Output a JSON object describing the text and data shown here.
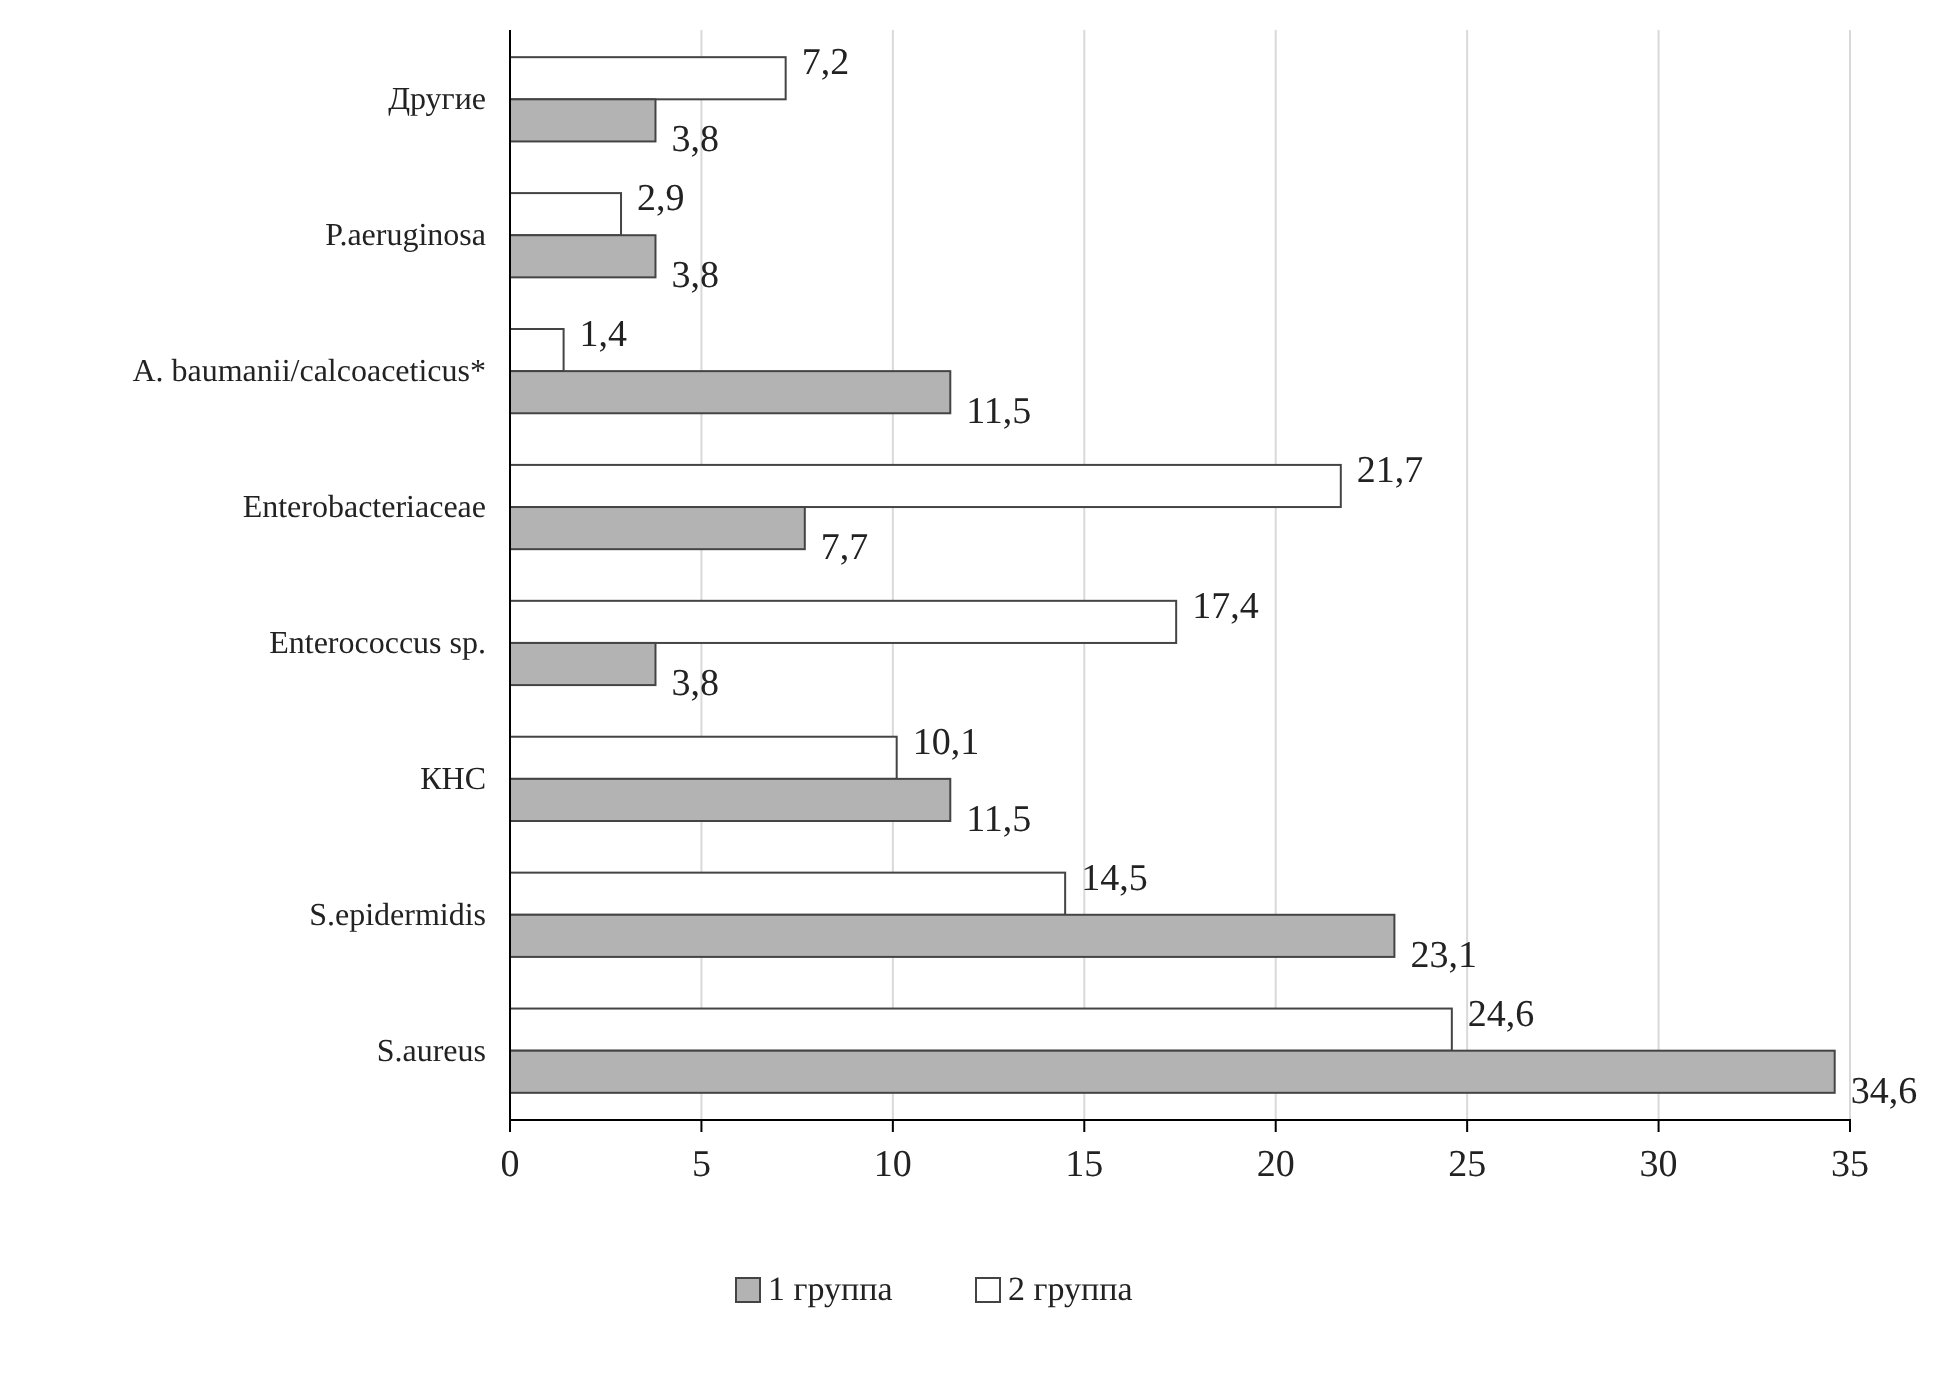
{
  "chart_data": {
    "type": "bar",
    "orientation": "horizontal",
    "categories": [
      "Другие",
      "P.aeruginosa",
      "A. baumanii/calcoaceticus*",
      "Enterobacteriaceae",
      "Enterococcus sp.",
      "КНС",
      "S.epidermidis",
      "S.aureus"
    ],
    "series": [
      {
        "name": "2 группа",
        "color": "#ffffff",
        "values": [
          7.2,
          2.9,
          1.4,
          21.7,
          17.4,
          10.1,
          14.5,
          24.6
        ],
        "value_labels": [
          "7,2",
          "2,9",
          "1,4",
          "21,7",
          "17,4",
          "10,1",
          "14,5",
          "24,6"
        ]
      },
      {
        "name": "1 группа",
        "color": "#b3b3b3",
        "values": [
          3.8,
          3.8,
          11.5,
          7.7,
          3.8,
          11.5,
          23.1,
          34.6
        ],
        "value_labels": [
          "3,8",
          "3,8",
          "11,5",
          "7,7",
          "3,8",
          "11,5",
          "23,1",
          "34,6"
        ]
      }
    ],
    "xlim": [
      0,
      35
    ],
    "xticks": [
      0,
      5,
      10,
      15,
      20,
      25,
      30,
      35
    ],
    "grid": "x",
    "legend": "bottom"
  }
}
